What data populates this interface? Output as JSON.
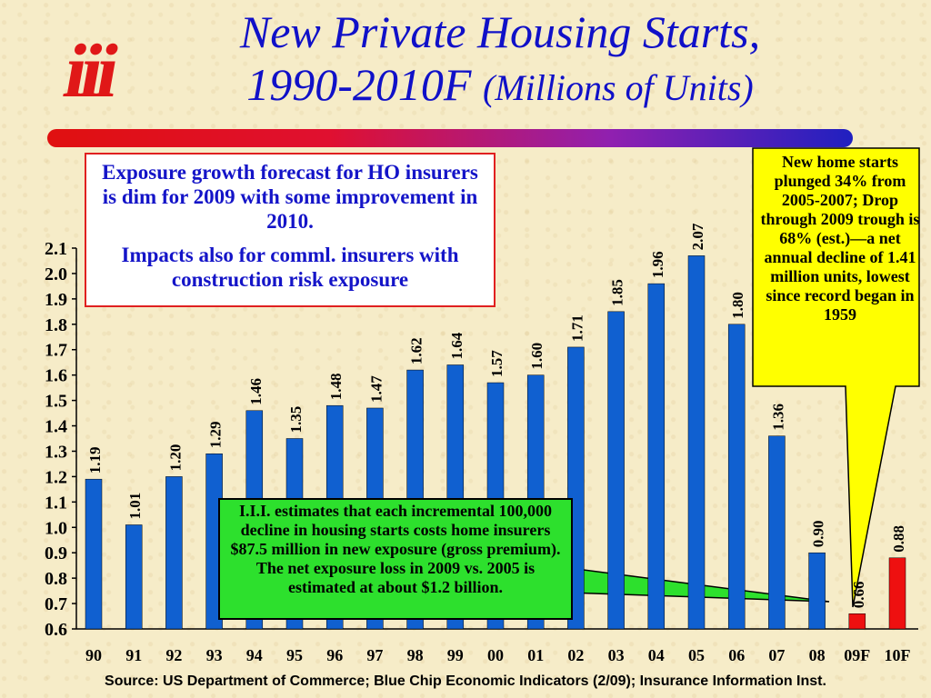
{
  "title": {
    "line1": "New Private Housing Starts,",
    "line2": "1990-2010F",
    "subtitle": "(Millions of Units)"
  },
  "logo_text": "iii",
  "annotations": {
    "top_left_box": [
      "Exposure growth forecast for HO insurers is dim for 2009 with some improvement in 2010.",
      "Impacts also for comml. insurers with construction risk exposure"
    ],
    "yellow_callout": "New home starts plunged 34% from 2005-2007; Drop through 2009 trough is 68% (est.)—a net annual decline of 1.41 million units, lowest since record began in 1959",
    "green_box": "I.I.I. estimates that each incremental 100,000 decline in housing starts costs home insurers $87.5 million in new exposure (gross premium).  The net exposure loss in 2009 vs. 2005 is estimated at about $1.2 billion."
  },
  "source": "Source: US Department of Commerce; Blue Chip Economic Indicators (2/09); Insurance Information Inst.",
  "colors": {
    "title": "#1010c8",
    "actual_bar": "#1060d0",
    "forecast_bar": "#ee1010",
    "callout_fill": "#ffff00",
    "green_box_fill": "#2de02d",
    "rule_start": "#e01010",
    "rule_end": "#2020c0"
  },
  "chart_data": {
    "type": "bar",
    "categories": [
      "90",
      "91",
      "92",
      "93",
      "94",
      "95",
      "96",
      "97",
      "98",
      "99",
      "00",
      "01",
      "02",
      "03",
      "04",
      "05",
      "06",
      "07",
      "08",
      "09F",
      "10F"
    ],
    "values": [
      1.19,
      1.01,
      1.2,
      1.29,
      1.46,
      1.35,
      1.48,
      1.47,
      1.62,
      1.64,
      1.57,
      1.6,
      1.71,
      1.85,
      1.96,
      2.07,
      1.8,
      1.36,
      0.9,
      0.66,
      0.88
    ],
    "data_labels": [
      "1.19",
      "1.01",
      "1.20",
      "1.29",
      "1.46",
      "1.35",
      "1.48",
      "1.47",
      "1.62",
      "1.64",
      "1.57",
      "1.60",
      "1.71",
      "1.85",
      "1.96",
      "2.07",
      "1.80",
      "1.36",
      "0.90",
      "0.66",
      "0.88"
    ],
    "forecast": [
      false,
      false,
      false,
      false,
      false,
      false,
      false,
      false,
      false,
      false,
      false,
      false,
      false,
      false,
      false,
      false,
      false,
      false,
      false,
      true,
      true
    ],
    "yticks": [
      "0.6",
      "0.7",
      "0.8",
      "0.9",
      "1.0",
      "1.1",
      "1.2",
      "1.3",
      "1.4",
      "1.5",
      "1.6",
      "1.7",
      "1.8",
      "1.9",
      "2.0",
      "2.1"
    ],
    "ylim": [
      0.6,
      2.1
    ],
    "title": "New Private Housing Starts, 1990-2010F",
    "xlabel": "",
    "ylabel": "",
    "grid": false
  }
}
